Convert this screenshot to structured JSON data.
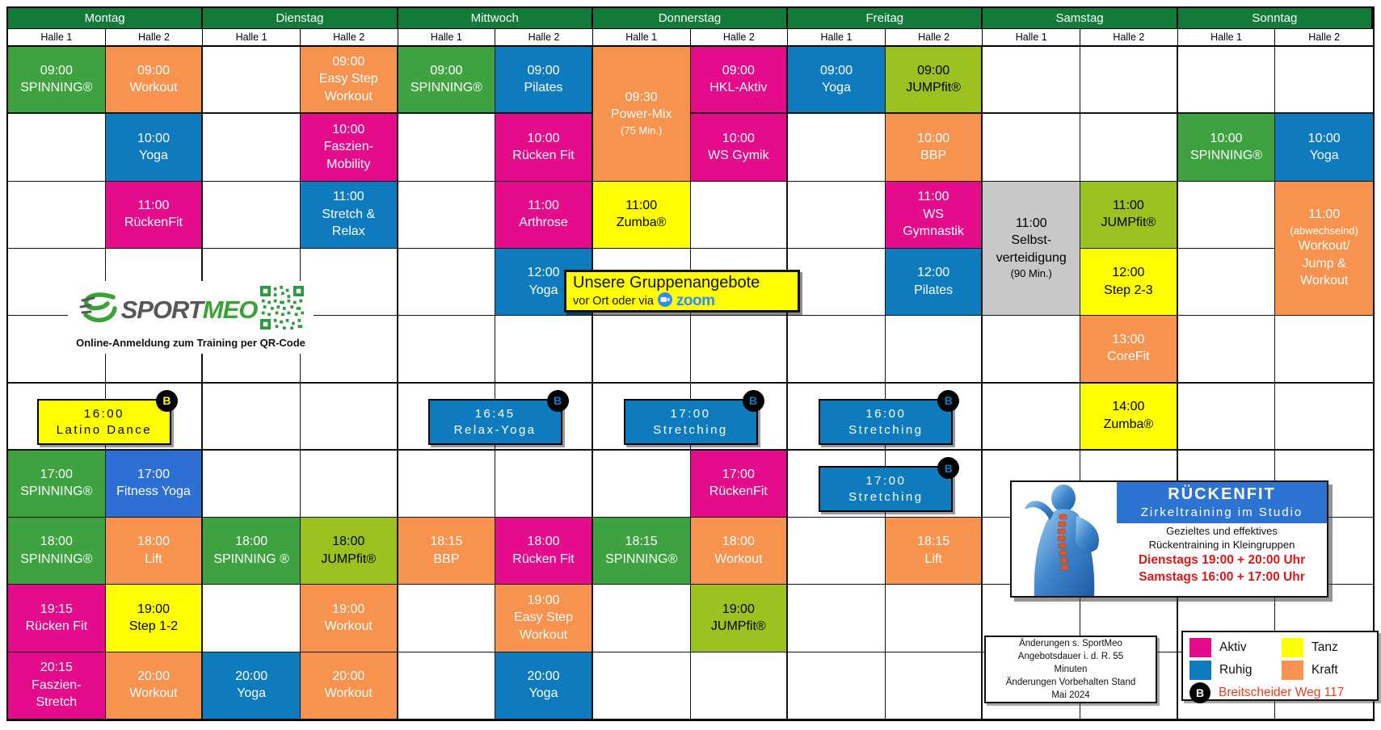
{
  "palette": {
    "header_green": "#147a3a",
    "green": "#3da23f",
    "orange": "#f7934e",
    "blue": "#0f7bbf",
    "pink": "#e50c8b",
    "yellow": "#ffff00",
    "lightgreen": "#9cc21f",
    "gray": "#c8c8c8",
    "royalblue": "#2e6fd6",
    "ad_blue": "#2d73d2",
    "zoom_blue": "#2d8cff",
    "red": "#e01717",
    "address_red": "#e6401f"
  },
  "days": [
    "Montag",
    "Dienstag",
    "Mittwoch",
    "Donnerstag",
    "Freitag",
    "Samstag",
    "Sonntag"
  ],
  "hall_labels": [
    "Halle 1",
    "Halle 2"
  ],
  "events": [
    {
      "day": 0,
      "hall": 0,
      "row": 1,
      "cat": "green",
      "lines": [
        "09:00",
        "SPINNING®"
      ]
    },
    {
      "day": 0,
      "hall": 0,
      "row": 7,
      "cat": "green",
      "lines": [
        "17:00",
        "SPINNING®"
      ]
    },
    {
      "day": 0,
      "hall": 0,
      "row": 8,
      "cat": "green",
      "lines": [
        "18:00",
        "SPINNING®"
      ]
    },
    {
      "day": 0,
      "hall": 0,
      "row": 9,
      "cat": "pink",
      "lines": [
        "19:15",
        "Rücken Fit"
      ]
    },
    {
      "day": 0,
      "hall": 0,
      "row": 10,
      "cat": "pink",
      "lines": [
        "20:15",
        "Faszien-",
        "Stretch"
      ]
    },
    {
      "day": 0,
      "hall": 1,
      "row": 1,
      "cat": "orange",
      "lines": [
        "09:00",
        "Workout"
      ]
    },
    {
      "day": 0,
      "hall": 1,
      "row": 2,
      "cat": "blue",
      "lines": [
        "10:00",
        "Yoga"
      ]
    },
    {
      "day": 0,
      "hall": 1,
      "row": 3,
      "cat": "pink",
      "lines": [
        "11:00",
        "RückenFit"
      ]
    },
    {
      "day": 0,
      "hall": 1,
      "row": 7,
      "cat": "royalblue",
      "lines": [
        "17:00",
        "Fitness Yoga"
      ]
    },
    {
      "day": 0,
      "hall": 1,
      "row": 8,
      "cat": "orange",
      "lines": [
        "18:00",
        "Lift"
      ]
    },
    {
      "day": 0,
      "hall": 1,
      "row": 9,
      "cat": "yellow",
      "lines": [
        "19:00",
        "Step 1-2"
      ]
    },
    {
      "day": 0,
      "hall": 1,
      "row": 10,
      "cat": "orange",
      "lines": [
        "20:00",
        "Workout"
      ]
    },
    {
      "day": 1,
      "hall": 0,
      "row": 8,
      "cat": "green",
      "lines": [
        "18:00",
        "SPINNING ®"
      ]
    },
    {
      "day": 1,
      "hall": 0,
      "row": 10,
      "cat": "blue",
      "lines": [
        "20:00",
        "Yoga"
      ]
    },
    {
      "day": 1,
      "hall": 1,
      "row": 1,
      "cat": "orange",
      "lines": [
        "09:00",
        "Easy Step",
        "Workout"
      ]
    },
    {
      "day": 1,
      "hall": 1,
      "row": 2,
      "cat": "pink",
      "lines": [
        "10:00",
        "Faszien-",
        "Mobility"
      ]
    },
    {
      "day": 1,
      "hall": 1,
      "row": 3,
      "cat": "blue",
      "lines": [
        "11:00",
        "Stretch &",
        "Relax"
      ]
    },
    {
      "day": 1,
      "hall": 1,
      "row": 8,
      "cat": "lightgreen",
      "lines": [
        "18:00",
        "JUMPfit®"
      ]
    },
    {
      "day": 1,
      "hall": 1,
      "row": 9,
      "cat": "orange",
      "lines": [
        "19:00",
        "Workout"
      ]
    },
    {
      "day": 1,
      "hall": 1,
      "row": 10,
      "cat": "orange",
      "lines": [
        "20:00",
        "Workout"
      ]
    },
    {
      "day": 2,
      "hall": 0,
      "row": 1,
      "cat": "green",
      "lines": [
        "09:00",
        "SPINNING®"
      ]
    },
    {
      "day": 2,
      "hall": 0,
      "row": 8,
      "cat": "orange",
      "lines": [
        "18:15",
        "BBP"
      ]
    },
    {
      "day": 2,
      "hall": 1,
      "row": 1,
      "cat": "blue",
      "lines": [
        "09:00",
        "Pilates"
      ]
    },
    {
      "day": 2,
      "hall": 1,
      "row": 2,
      "cat": "pink",
      "lines": [
        "10:00",
        "Rücken Fit"
      ]
    },
    {
      "day": 2,
      "hall": 1,
      "row": 3,
      "cat": "pink",
      "lines": [
        "11:00",
        "Arthrose"
      ]
    },
    {
      "day": 2,
      "hall": 1,
      "row": 4,
      "cat": "blue",
      "lines": [
        "12:00",
        "Yoga"
      ]
    },
    {
      "day": 2,
      "hall": 1,
      "row": 8,
      "cat": "pink",
      "lines": [
        "18:00",
        "Rücken Fit"
      ]
    },
    {
      "day": 2,
      "hall": 1,
      "row": 9,
      "cat": "orange",
      "lines": [
        "19:00",
        "Easy Step",
        "Workout"
      ]
    },
    {
      "day": 2,
      "hall": 1,
      "row": 10,
      "cat": "blue",
      "lines": [
        "20:00",
        "Yoga"
      ]
    },
    {
      "day": 3,
      "hall": 0,
      "row": 1,
      "span": 2,
      "cat": "orange",
      "lines": [
        "09:30",
        "Power-Mix",
        "(75 Min.)"
      ]
    },
    {
      "day": 3,
      "hall": 0,
      "row": 3,
      "cat": "yellow",
      "lines": [
        "11:00",
        "Zumba®"
      ]
    },
    {
      "day": 3,
      "hall": 0,
      "row": 8,
      "cat": "green",
      "lines": [
        "18:15",
        "SPINNING®"
      ]
    },
    {
      "day": 3,
      "hall": 1,
      "row": 1,
      "cat": "pink",
      "lines": [
        "09:00",
        "HKL-Aktiv"
      ]
    },
    {
      "day": 3,
      "hall": 1,
      "row": 2,
      "cat": "pink",
      "lines": [
        "10:00",
        "WS Gymik"
      ]
    },
    {
      "day": 3,
      "hall": 1,
      "row": 7,
      "cat": "pink",
      "lines": [
        "17:00",
        "RückenFit"
      ]
    },
    {
      "day": 3,
      "hall": 1,
      "row": 8,
      "cat": "orange",
      "lines": [
        "18:00",
        "Workout"
      ]
    },
    {
      "day": 3,
      "hall": 1,
      "row": 9,
      "cat": "lightgreen",
      "lines": [
        "19:00",
        "JUMPfit®"
      ]
    },
    {
      "day": 4,
      "hall": 0,
      "row": 1,
      "cat": "blue",
      "lines": [
        "09:00",
        "Yoga"
      ]
    },
    {
      "day": 4,
      "hall": 1,
      "row": 1,
      "cat": "lightgreen",
      "lines": [
        "09:00",
        "JUMPfit®"
      ]
    },
    {
      "day": 4,
      "hall": 1,
      "row": 2,
      "cat": "orange",
      "lines": [
        "10:00",
        "BBP"
      ]
    },
    {
      "day": 4,
      "hall": 1,
      "row": 3,
      "cat": "pink",
      "lines": [
        "11:00",
        "WS",
        "Gymnastik"
      ]
    },
    {
      "day": 4,
      "hall": 1,
      "row": 4,
      "cat": "blue",
      "lines": [
        "12:00",
        "Pilates"
      ]
    },
    {
      "day": 4,
      "hall": 1,
      "row": 8,
      "cat": "orange",
      "lines": [
        "18:15",
        "Lift"
      ]
    },
    {
      "day": 5,
      "hall": 0,
      "row": 3,
      "span": 2,
      "cat": "gray",
      "lines": [
        "11:00",
        "Selbst-",
        "verteidigung",
        "(90 Min.)"
      ]
    },
    {
      "day": 5,
      "hall": 1,
      "row": 3,
      "cat": "lightgreen",
      "lines": [
        "11:00",
        "JUMPfit®"
      ]
    },
    {
      "day": 5,
      "hall": 1,
      "row": 4,
      "cat": "yellow",
      "lines": [
        "12:00",
        "Step 2-3"
      ]
    },
    {
      "day": 5,
      "hall": 1,
      "row": 5,
      "cat": "orange",
      "lines": [
        "13:00",
        "CoreFit"
      ]
    },
    {
      "day": 5,
      "hall": 1,
      "row": 6,
      "cat": "yellow",
      "lines": [
        "14:00",
        "Zumba®"
      ]
    },
    {
      "day": 6,
      "hall": 0,
      "row": 2,
      "cat": "green",
      "lines": [
        "10:00",
        "SPINNING®"
      ]
    },
    {
      "day": 6,
      "hall": 1,
      "row": 2,
      "cat": "blue",
      "lines": [
        "10:00",
        "Yoga"
      ]
    },
    {
      "day": 6,
      "hall": 1,
      "row": 3,
      "span": 2,
      "cat": "orange",
      "lines": [
        "11:00",
        "(abwechselnd)",
        "Workout/",
        "Jump &",
        "Workout"
      ]
    }
  ],
  "floats": [
    {
      "day": 0,
      "row": 6,
      "cat": "yellow",
      "badge": "B",
      "lines": [
        "16:00",
        "Latino Dance"
      ]
    },
    {
      "day": 2,
      "row": 6,
      "cat": "blue",
      "badge": "B",
      "lines": [
        "16:45",
        "Relax-Yoga"
      ]
    },
    {
      "day": 3,
      "row": 6,
      "cat": "blue",
      "badge": "B",
      "lines": [
        "17:00",
        "Stretching"
      ]
    },
    {
      "day": 4,
      "row": 6,
      "cat": "blue",
      "badge": "B",
      "lines": [
        "16:00",
        "Stretching"
      ]
    },
    {
      "day": 4,
      "row": 7,
      "cat": "blue",
      "badge": "B",
      "lines": [
        "17:00",
        "Stretching"
      ]
    }
  ],
  "logo": {
    "part1": "SPORT",
    "part2": "MEO",
    "caption": "Online-Anmeldung zum Training per QR-Code"
  },
  "offer": {
    "title": "Unsere Gruppenangebote",
    "subtitle_prefix": "vor Ort oder via",
    "zoom_label": "zoom"
  },
  "ad": {
    "title": "RÜCKENFIT",
    "subtitle": "Zirkeltraining im Studio",
    "body1": "Gezieltes und effektives",
    "body2": "Rückentraining in Kleingruppen",
    "red1": "Dienstags 19:00 + 20:00 Uhr",
    "red2": "Samstags 16:00 + 17:00 Uhr"
  },
  "notes": {
    "lines": [
      "Änderungen s. SportMeo",
      "Angebotsdauer i. d. R. 55",
      "Minuten",
      "Änderungen Vorbehalten Stand",
      "Mai 2024"
    ]
  },
  "legend": {
    "items": [
      {
        "label": "Aktiv",
        "cat": "pink"
      },
      {
        "label": "Tanz",
        "cat": "yellow"
      },
      {
        "label": "Ruhig",
        "cat": "blue"
      },
      {
        "label": "Kraft",
        "cat": "orange"
      }
    ],
    "badge_letter": "B",
    "badge_text": "Breitscheider Weg 117"
  }
}
